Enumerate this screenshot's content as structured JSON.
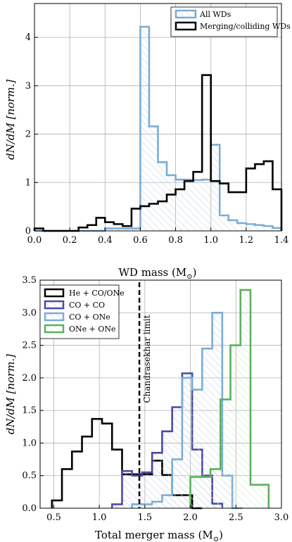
{
  "chart_data": [
    {
      "type": "histogram",
      "xlabel": "WD mass (M",
      "xlabel_sub": "⊙",
      "xlabel_end": ")",
      "ylabel": "dN/dM [norm.]",
      "xlim": [
        0.0,
        1.4
      ],
      "ylim": [
        0,
        4.7
      ],
      "xticks": [
        "0.0",
        "0.2",
        "0.4",
        "0.6",
        "0.8",
        "1.0",
        "1.2",
        "1.4"
      ],
      "yticks": [
        "0",
        "1",
        "2",
        "3",
        "4"
      ],
      "grid": true,
      "legend_position": "top-right",
      "series": [
        {
          "name": "All WDs",
          "color": "#7aadd6",
          "hatch": true,
          "bin_edges": [
            0.0,
            0.05,
            0.1,
            0.15,
            0.2,
            0.25,
            0.3,
            0.35,
            0.4,
            0.45,
            0.5,
            0.55,
            0.6,
            0.65,
            0.7,
            0.75,
            0.8,
            0.85,
            0.9,
            0.95,
            1.0,
            1.05,
            1.1,
            1.15,
            1.2,
            1.25,
            1.3,
            1.35,
            1.4
          ],
          "values": [
            0.0,
            0.0,
            0.0,
            0.0,
            0.0,
            0.0,
            0.0,
            0.0,
            0.05,
            0.05,
            0.05,
            0.05,
            4.22,
            2.16,
            1.42,
            1.15,
            1.06,
            1.06,
            1.05,
            1.06,
            1.78,
            0.32,
            0.22,
            0.16,
            0.14,
            0.12,
            0.1,
            0.06
          ]
        },
        {
          "name": "Merging/colliding WDs",
          "color": "#000000",
          "hatch": false,
          "bin_edges": [
            0.0,
            0.05,
            0.1,
            0.15,
            0.2,
            0.25,
            0.3,
            0.35,
            0.4,
            0.45,
            0.5,
            0.55,
            0.6,
            0.65,
            0.7,
            0.75,
            0.8,
            0.85,
            0.9,
            0.95,
            1.0,
            1.05,
            1.1,
            1.15,
            1.2,
            1.25,
            1.3,
            1.35,
            1.4
          ],
          "values": [
            0.05,
            0.0,
            0.0,
            0.0,
            0.0,
            0.07,
            0.12,
            0.27,
            0.18,
            0.14,
            0.1,
            0.46,
            0.51,
            0.56,
            0.61,
            0.75,
            0.86,
            1.03,
            1.22,
            3.22,
            1.03,
            0.98,
            0.8,
            0.8,
            1.29,
            1.38,
            1.44,
            0.86
          ]
        }
      ]
    },
    {
      "type": "histogram",
      "xlabel": "Total merger mass (M",
      "xlabel_sub": "⊙",
      "xlabel_end": ")",
      "ylabel": "dN/dM [norm.]",
      "xlim": [
        0.35,
        3.0
      ],
      "ylim": [
        0,
        3.5
      ],
      "xticks": [
        "0.5",
        "1.0",
        "1.5",
        "2.0",
        "2.5",
        "3.0"
      ],
      "yticks": [
        "0.0",
        "0.5",
        "1.0",
        "1.5",
        "2.0",
        "2.5",
        "3.0",
        "3.5"
      ],
      "grid": true,
      "legend_position": "top-left",
      "annotation": {
        "text": "Chandrasekhar limit",
        "x": 1.44
      },
      "series": [
        {
          "name": "He + CO/ONe",
          "color": "#000000",
          "bin_edges": [
            0.48,
            0.59,
            0.7,
            0.81,
            0.92,
            1.03,
            1.14,
            1.25,
            1.36,
            1.47,
            1.58,
            1.69,
            1.8,
            1.91,
            2.02,
            2.13
          ],
          "values": [
            0.12,
            0.6,
            0.87,
            1.1,
            1.37,
            1.3,
            0.9,
            0.52,
            0.52,
            0.52,
            0.73,
            0.51,
            0.2,
            0.2,
            0.0
          ]
        },
        {
          "name": "CO + CO",
          "color": "#4a4aa8",
          "bin_edges": [
            1.14,
            1.25,
            1.36,
            1.47,
            1.58,
            1.69,
            1.8,
            1.91,
            2.02,
            2.13,
            2.24,
            2.35
          ],
          "values": [
            0.06,
            0.57,
            0.5,
            0.55,
            0.85,
            1.18,
            1.55,
            2.07,
            0.9,
            0.5,
            0.07
          ]
        },
        {
          "name": "CO + ONe",
          "color": "#7aadd6",
          "bin_edges": [
            1.36,
            1.47,
            1.58,
            1.69,
            1.8,
            1.91,
            2.02,
            2.13,
            2.24,
            2.35,
            2.46,
            2.57
          ],
          "values": [
            0.06,
            0.06,
            0.1,
            0.2,
            0.75,
            2.0,
            1.82,
            2.45,
            3.0,
            0.5,
            0.0
          ]
        },
        {
          "name": "ONe + ONe",
          "color": "#5bb25b",
          "bin_edges": [
            2.0,
            2.11,
            2.22,
            2.33,
            2.44,
            2.55,
            2.66,
            2.77,
            2.86
          ],
          "values": [
            0.48,
            0.48,
            0.6,
            1.67,
            2.5,
            3.35,
            0.36,
            0.36
          ]
        }
      ]
    }
  ]
}
